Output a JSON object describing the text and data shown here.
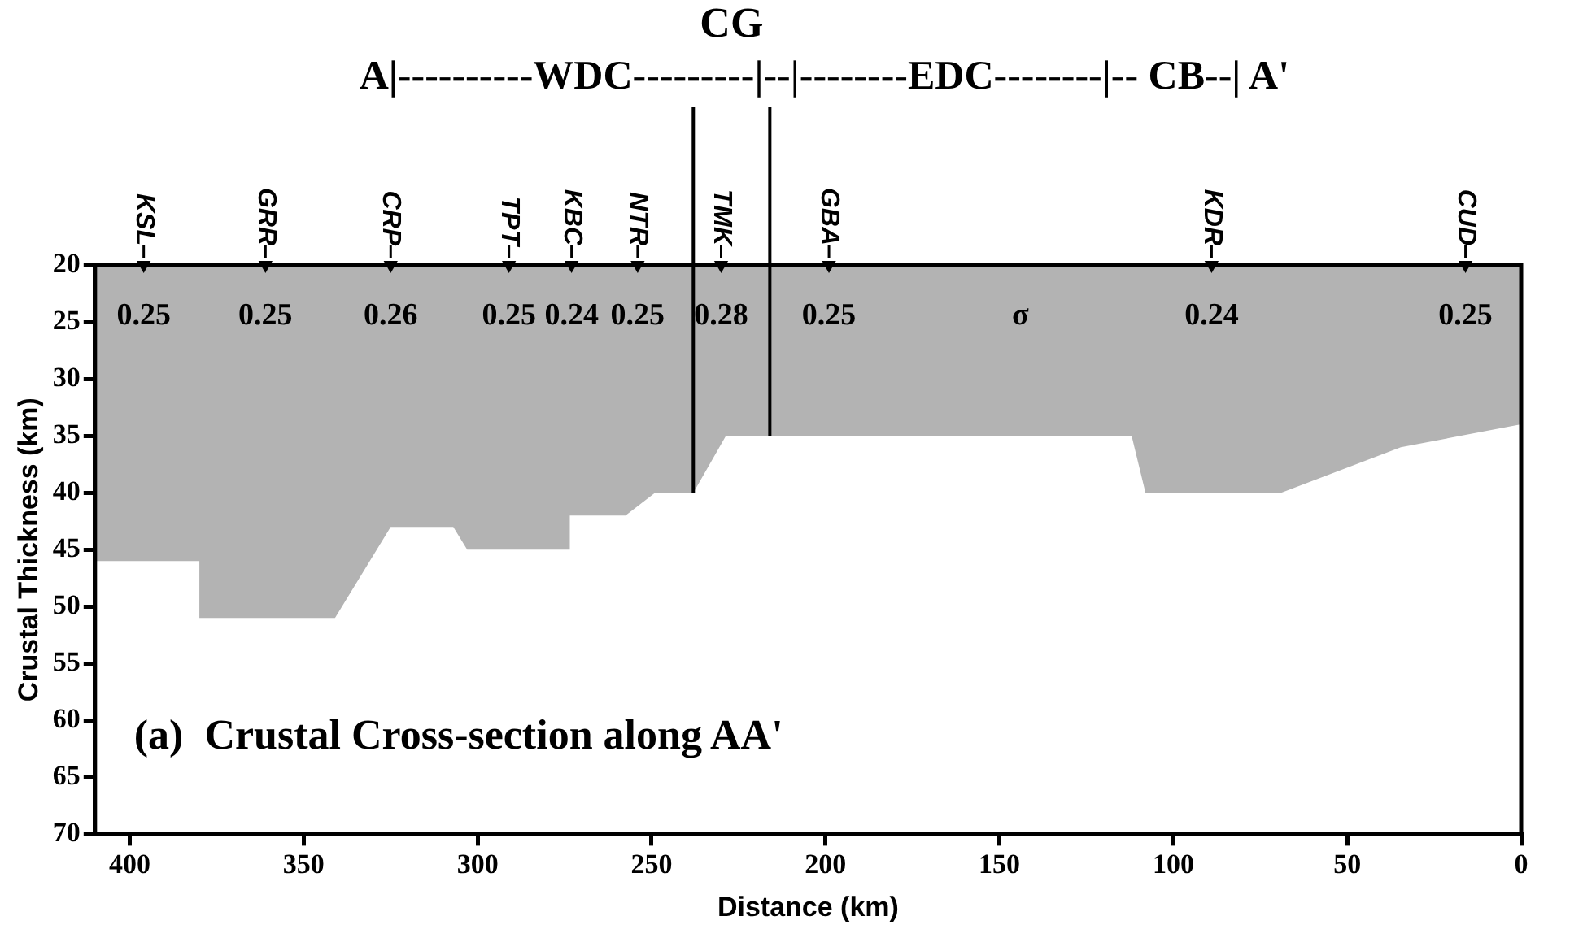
{
  "chart_data": {
    "type": "area",
    "title": "(a)  Crustal Cross-section along AA'",
    "xlabel": "Distance (km)",
    "ylabel": "Crustal Thickness (km)",
    "x": [
      410,
      380,
      380,
      341,
      325,
      307,
      303,
      273.5,
      273.5,
      257.5,
      249,
      238,
      228.6,
      112,
      108,
      69,
      34.6,
      0
    ],
    "series": [
      {
        "color": "#b3b3b3",
        "values": [
          46,
          46,
          51,
          51,
          43,
          43,
          45,
          45,
          42,
          42,
          40,
          40,
          35,
          35,
          40,
          40,
          36,
          34
        ]
      },
      {
        "type": "scatter",
        "color": "#000000",
        "marker": "triangle",
        "x": [
          396,
          361,
          325,
          291,
          273,
          254,
          230,
          199,
          89,
          16
        ],
        "values": [
          20,
          20,
          20,
          20,
          20,
          20,
          20,
          20,
          20,
          20
        ],
        "value_labels": [
          "KSL",
          "GRR",
          "CRP",
          "TPT",
          "KBC",
          "NTR",
          "TMK",
          "GBA",
          "KDR",
          "CUD"
        ]
      }
    ],
    "xlim": [
      410,
      0
    ],
    "xticks": [
      400,
      350,
      300,
      250,
      200,
      150,
      100,
      50,
      0
    ],
    "ylim": [
      70,
      20
    ],
    "yticks": [
      20,
      25,
      30,
      35,
      40,
      45,
      50,
      55,
      60,
      65,
      70
    ],
    "grid": false,
    "legend": false,
    "ref_lines": [
      {
        "axis": "x",
        "value": 238
      },
      {
        "axis": "x",
        "value": 216
      }
    ],
    "annotations": [
      "A|----------WDC---------|--|--------EDC--------|-- CB--| A'",
      "CG",
      "0.25",
      "0.25",
      "0.26",
      "0.25",
      "0.24",
      "0.25",
      "0.28",
      "0.25",
      "0.24",
      "0.25",
      "σ"
    ]
  }
}
